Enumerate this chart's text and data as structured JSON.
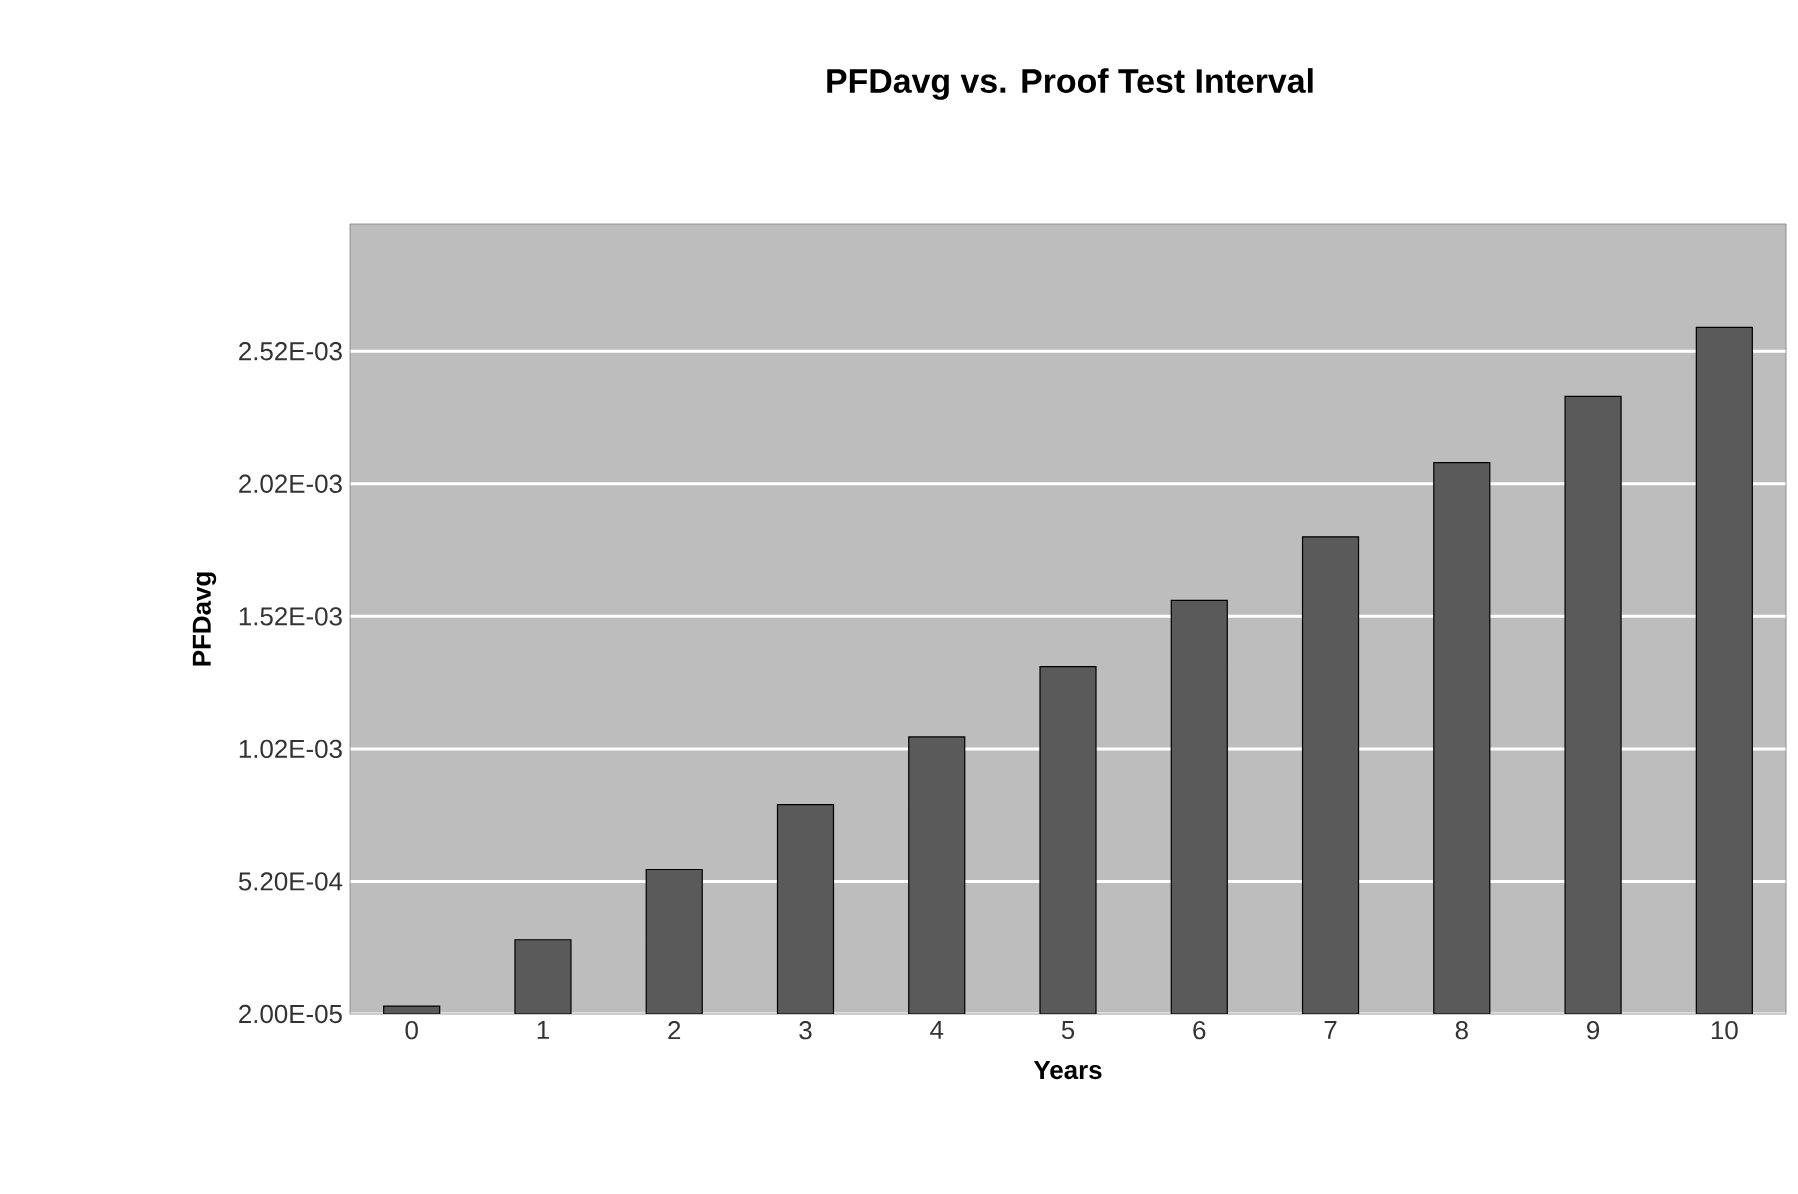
{
  "chart_data": {
    "type": "bar",
    "title": "PFDavg vs. Proof Test Interval",
    "xlabel": "Years",
    "ylabel": "PFDavg",
    "categories": [
      "0",
      "1",
      "2",
      "3",
      "4",
      "5",
      "6",
      "7",
      "8",
      "9",
      "10"
    ],
    "values": [
      5e-05,
      0.0003,
      0.000565,
      0.00081,
      0.001065,
      0.00133,
      0.00158,
      0.00182,
      0.0021,
      0.00235,
      0.00261
    ],
    "color": "#5a5a5a",
    "ylim": [
      2e-05,
      0.003
    ],
    "yticks": [
      {
        "value": 2e-05,
        "label": "2.00E-05"
      },
      {
        "value": 0.00052,
        "label": "5.20E-04"
      },
      {
        "value": 0.00102,
        "label": "1.02E-03"
      },
      {
        "value": 0.00152,
        "label": "1.52E-03"
      },
      {
        "value": 0.00202,
        "label": "2.02E-03"
      },
      {
        "value": 0.00252,
        "label": "2.52E-03"
      }
    ],
    "grid": "y"
  }
}
